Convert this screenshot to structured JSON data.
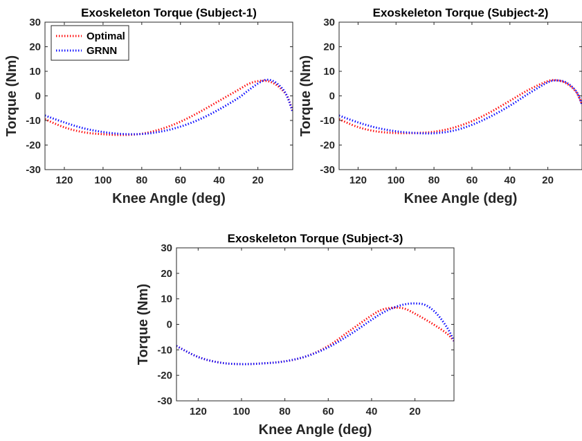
{
  "chart_data": [
    {
      "type": "line",
      "title": "Exoskeleton Torque (Subject-1)",
      "xlabel": "Knee Angle (deg)",
      "ylabel": "Torque (Nm)",
      "xlim": [
        130,
        2
      ],
      "ylim": [
        -30,
        30
      ],
      "x_reversed": true,
      "xticks": [
        120,
        100,
        80,
        60,
        40,
        20
      ],
      "yticks": [
        -30,
        -20,
        -10,
        0,
        10,
        20,
        30
      ],
      "grid": false,
      "legend": "top-left",
      "series": [
        {
          "name": "Optimal",
          "color": "#ff0000",
          "style": "dotted",
          "x": [
            130,
            120,
            110,
            100,
            90,
            80,
            70,
            60,
            50,
            40,
            30,
            25,
            20,
            15,
            10,
            5,
            2
          ],
          "y": [
            -9.5,
            -12.8,
            -14.8,
            -15.6,
            -15.9,
            -15.4,
            -13.5,
            -10.5,
            -6.5,
            -2.0,
            2.5,
            4.8,
            6.0,
            6.0,
            4.2,
            0.0,
            -6.5
          ]
        },
        {
          "name": "GRNN",
          "color": "#0000ff",
          "style": "dotted",
          "x": [
            130,
            120,
            110,
            100,
            90,
            80,
            70,
            60,
            50,
            40,
            30,
            25,
            20,
            16,
            12,
            8,
            5,
            2
          ],
          "y": [
            -8.0,
            -10.8,
            -13.2,
            -14.7,
            -15.5,
            -15.5,
            -14.5,
            -12.5,
            -9.5,
            -5.5,
            -0.8,
            2.2,
            5.0,
            6.5,
            6.0,
            3.5,
            0.0,
            -6.5
          ]
        }
      ]
    },
    {
      "type": "line",
      "title": "Exoskeleton Torque (Subject-2)",
      "xlabel": "Knee Angle (deg)",
      "ylabel": "Torque (Nm)",
      "xlim": [
        130,
        2
      ],
      "ylim": [
        -30,
        30
      ],
      "x_reversed": true,
      "xticks": [
        120,
        100,
        80,
        60,
        40,
        20
      ],
      "yticks": [
        -30,
        -20,
        -10,
        0,
        10,
        20,
        30
      ],
      "grid": false,
      "series": [
        {
          "name": "Optimal",
          "color": "#ff0000",
          "style": "dotted",
          "x": [
            130,
            120,
            110,
            100,
            90,
            80,
            70,
            60,
            50,
            40,
            30,
            20,
            15,
            10,
            5,
            2
          ],
          "y": [
            -9.5,
            -12.7,
            -14.5,
            -15.1,
            -15.1,
            -14.6,
            -13.0,
            -10.3,
            -6.5,
            -2.0,
            2.5,
            6.0,
            6.3,
            5.0,
            1.5,
            -3.5
          ]
        },
        {
          "name": "GRNN",
          "color": "#0000ff",
          "style": "dotted",
          "x": [
            130,
            120,
            110,
            100,
            90,
            80,
            70,
            60,
            50,
            40,
            30,
            20,
            15,
            10,
            5,
            2
          ],
          "y": [
            -8.0,
            -10.8,
            -13.0,
            -14.4,
            -15.1,
            -15.2,
            -14.2,
            -11.8,
            -8.3,
            -4.0,
            1.0,
            5.5,
            6.3,
            5.3,
            1.8,
            -3.5
          ]
        }
      ]
    },
    {
      "type": "line",
      "title": "Exoskeleton Torque (Subject-3)",
      "xlabel": "Knee Angle (deg)",
      "ylabel": "Torque (Nm)",
      "xlim": [
        130,
        2
      ],
      "ylim": [
        -30,
        30
      ],
      "x_reversed": true,
      "xticks": [
        120,
        100,
        80,
        60,
        40,
        20
      ],
      "yticks": [
        -30,
        -20,
        -10,
        0,
        10,
        20,
        30
      ],
      "grid": false,
      "series": [
        {
          "name": "Optimal",
          "color": "#ff0000",
          "style": "dotted",
          "x": [
            130,
            120,
            110,
            100,
            90,
            80,
            70,
            60,
            50,
            40,
            35,
            30,
            25,
            20,
            15,
            10,
            5,
            2
          ],
          "y": [
            -8.5,
            -12.8,
            -15.0,
            -15.6,
            -15.3,
            -14.5,
            -12.5,
            -8.5,
            -2.5,
            3.5,
            5.8,
            6.5,
            6.2,
            4.2,
            1.8,
            -0.8,
            -3.8,
            -6.5
          ]
        },
        {
          "name": "GRNN",
          "color": "#0000ff",
          "style": "dotted",
          "x": [
            130,
            120,
            110,
            100,
            90,
            80,
            70,
            60,
            50,
            40,
            35,
            30,
            25,
            20,
            15,
            10,
            5,
            2
          ],
          "y": [
            -8.5,
            -12.8,
            -15.0,
            -15.6,
            -15.3,
            -14.5,
            -12.5,
            -9.0,
            -4.0,
            1.8,
            4.5,
            6.5,
            7.8,
            8.2,
            7.5,
            4.2,
            -1.5,
            -6.5
          ]
        }
      ]
    }
  ]
}
